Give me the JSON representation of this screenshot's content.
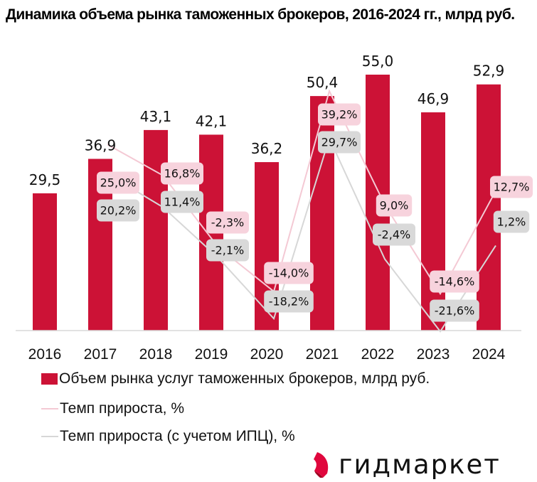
{
  "title": "Динамика объема рынка таможенных брокеров, 2016-2024 гг., млрд руб.",
  "colors": {
    "bar": "#cc1236",
    "growth_line": "#f4c9d4",
    "growth_label_bg": "#f7d3dd",
    "cpi_line": "#d7d7d7",
    "cpi_label_bg": "#d9d9d9",
    "axis": "#d9d9d9"
  },
  "chart_data": {
    "type": "bar",
    "title": "Динамика объема рынка таможенных брокеров, 2016-2024 гг., млрд руб.",
    "xlabel": "",
    "ylabel": "",
    "ylim": [
      0,
      55
    ],
    "grid": false,
    "legend_position": "bottom",
    "categories": [
      "2016",
      "2017",
      "2018",
      "2019",
      "2020",
      "2021",
      "2022",
      "2023",
      "2024"
    ],
    "series": [
      {
        "name": "Объем рынка услуг таможенных брокеров, млрд руб.",
        "kind": "bar",
        "values": [
          29.5,
          36.9,
          43.1,
          42.1,
          36.2,
          50.4,
          55.0,
          46.9,
          52.9
        ],
        "labels": [
          "29,5",
          "36,9",
          "43,1",
          "42,1",
          "36,2",
          "50,4",
          "55,0",
          "46,9",
          "52,9"
        ]
      },
      {
        "name": "Темп прироста, %",
        "kind": "line",
        "values": [
          null,
          25.0,
          16.8,
          -2.3,
          -14.0,
          39.2,
          9.0,
          -14.6,
          12.7
        ],
        "labels": [
          "",
          "25,0%",
          "16,8%",
          "-2,3%",
          "-14,0%",
          "39,2%",
          "9,0%",
          "-14,6%",
          "12,7%"
        ]
      },
      {
        "name": "Темп прироста (с учетом ИПЦ), %",
        "kind": "line",
        "values": [
          null,
          20.2,
          11.4,
          -2.1,
          -18.2,
          29.7,
          -2.4,
          -21.6,
          1.2
        ],
        "labels": [
          "",
          "20,2%",
          "11,4%",
          "-2,1%",
          "-18,2%",
          "29,7%",
          "-2,4%",
          "-21,6%",
          "1,2%"
        ]
      }
    ]
  },
  "legend": {
    "items": [
      {
        "label": "Объем рынка услуг таможенных брокеров, млрд руб."
      },
      {
        "label": "Темп прироста, %"
      },
      {
        "label": "Темп прироста (с учетом ИПЦ), %"
      }
    ]
  },
  "brand": {
    "name": "гидмаркет",
    "logo_icon": "gidmarket-logo-icon"
  }
}
